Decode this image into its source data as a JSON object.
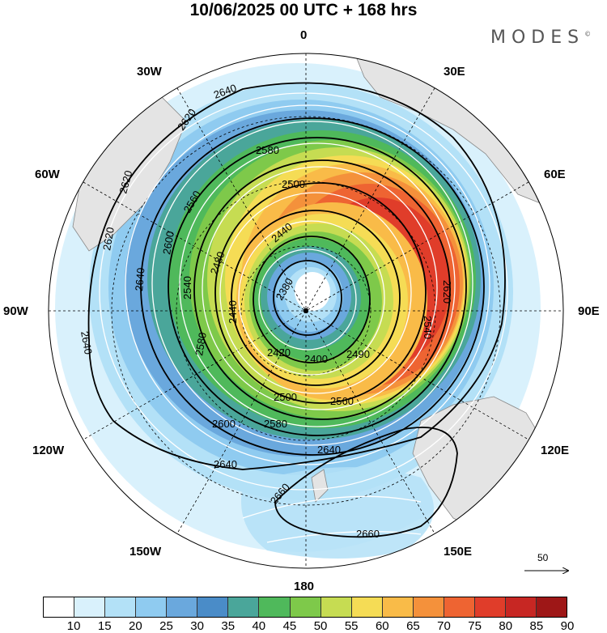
{
  "title": "10/06/2025  00 UTC  + 168 hrs",
  "brand": "MODES",
  "brand_mark": "©",
  "lon_labels": {
    "n": "0",
    "ne": "30E",
    "ene": "60E",
    "e": "90E",
    "ese": "120E",
    "se": "150E",
    "s": "180",
    "sw": "150W",
    "wsw": "120W",
    "w": "90W",
    "wnw": "60W",
    "nw": "30W"
  },
  "contours": [
    "2380",
    "2400",
    "2420",
    "2440",
    "2440",
    "2480",
    "2490",
    "2500",
    "2500",
    "2540",
    "2540",
    "2560",
    "2560",
    "2580",
    "2580",
    "2580",
    "2600",
    "2600",
    "2620",
    "2620",
    "2620",
    "2620",
    "2640",
    "2640",
    "2640",
    "2640",
    "2640",
    "2660",
    "2660"
  ],
  "wind_reference": "50",
  "colorbar": {
    "labels": [
      "10",
      "15",
      "20",
      "25",
      "30",
      "35",
      "40",
      "45",
      "50",
      "55",
      "60",
      "65",
      "70",
      "75",
      "80",
      "85",
      "90"
    ],
    "colors": [
      "#ffffff",
      "#d9f1fc",
      "#b3e1f7",
      "#8fcbf0",
      "#6aa8dd",
      "#4a8cc8",
      "#4aa69a",
      "#4fb95b",
      "#7ec94a",
      "#c6dc52",
      "#f5dc55",
      "#f9bb48",
      "#f4913b",
      "#ee6432",
      "#e03d2a",
      "#c72723",
      "#9e1717"
    ]
  }
}
